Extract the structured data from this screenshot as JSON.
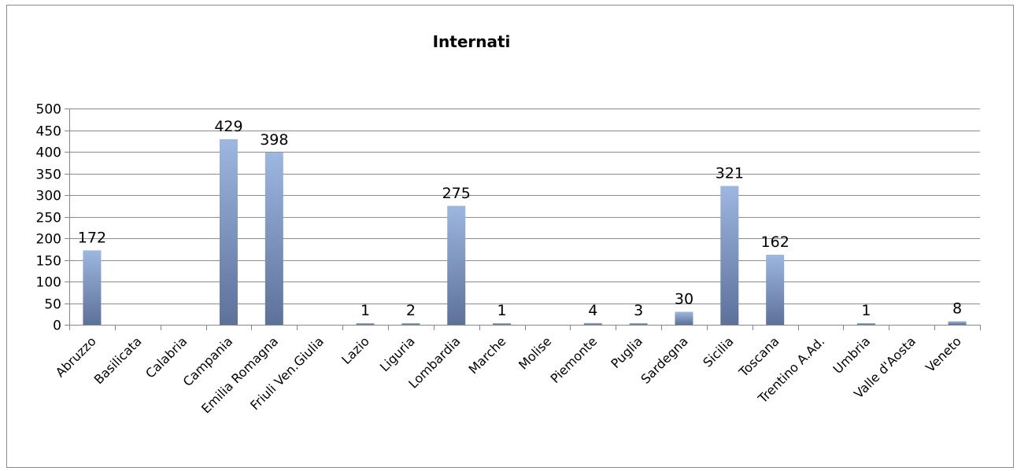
{
  "chart_data": {
    "type": "bar",
    "title": "Internati",
    "xlabel": "",
    "ylabel": "",
    "ylim": [
      0,
      500
    ],
    "yticks": [
      0,
      50,
      100,
      150,
      200,
      250,
      300,
      350,
      400,
      450,
      500
    ],
    "grid": true,
    "legend": "none",
    "categories": [
      "Abruzzo",
      "Basilicata",
      "Calabria",
      "Campania",
      "Emilia Romagna",
      "Friuli Ven.Giulia",
      "Lazio",
      "Liguria",
      "Lombardia",
      "Marche",
      "Molise",
      "Piemonte",
      "Puglia",
      "Sardegna",
      "Sicilia",
      "Toscana",
      "Trentino A.Ad.",
      "Umbria",
      "Valle d'Aosta",
      "Veneto"
    ],
    "values": [
      172,
      0,
      0,
      429,
      398,
      0,
      1,
      2,
      275,
      1,
      0,
      4,
      3,
      30,
      321,
      162,
      0,
      1,
      0,
      8
    ],
    "data_labels": [
      "172",
      "",
      "",
      "429",
      "398",
      "",
      "1",
      "2",
      "275",
      "1",
      "",
      "4",
      "3",
      "30",
      "321",
      "162",
      "",
      "1",
      "",
      "8"
    ],
    "colors": {
      "bar_top": "#9db7e0",
      "bar_bottom": "#5d7199",
      "grid": "#8c8c8c",
      "axis": "#868686"
    }
  }
}
